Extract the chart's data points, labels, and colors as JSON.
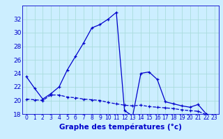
{
  "xlabel": "Graphe des températures (°c)",
  "bg_color": "#cceeff",
  "line_color": "#0000cc",
  "hours": [
    0,
    1,
    2,
    3,
    4,
    5,
    6,
    7,
    8,
    9,
    10,
    11,
    12,
    13,
    14,
    15,
    16,
    17,
    18,
    19,
    20,
    21,
    22,
    23
  ],
  "temp1": [
    23.5,
    21.8,
    20.2,
    21.0,
    22.0,
    24.5,
    26.5,
    28.5,
    30.7,
    31.2,
    32.0,
    33.0,
    18.5,
    17.7,
    24.0,
    24.2,
    23.1,
    19.8,
    19.5,
    19.2,
    19.0,
    19.4,
    18.0,
    17.7
  ],
  "temp2": [
    20.2,
    20.1,
    20.0,
    20.8,
    20.8,
    20.5,
    20.4,
    20.2,
    20.1,
    20.0,
    19.7,
    19.5,
    19.3,
    19.2,
    19.3,
    19.1,
    19.0,
    18.9,
    18.8,
    18.6,
    18.5,
    18.4,
    17.9,
    17.7
  ],
  "ylim": [
    18,
    34
  ],
  "yticks": [
    18,
    20,
    22,
    24,
    26,
    28,
    30,
    32
  ],
  "xlim": [
    -0.5,
    23.5
  ],
  "xticks": [
    0,
    1,
    2,
    3,
    4,
    5,
    6,
    7,
    8,
    9,
    10,
    11,
    12,
    13,
    14,
    15,
    16,
    17,
    18,
    19,
    20,
    21,
    22,
    23
  ],
  "grid_color": "#aadddd",
  "xlabel_fontsize": 7.5,
  "ytick_fontsize": 6.5,
  "xtick_fontsize": 5.5
}
